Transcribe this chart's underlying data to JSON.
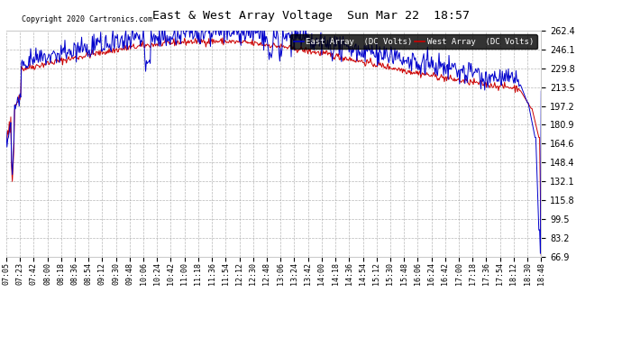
{
  "title": "East & West Array Voltage  Sun Mar 22  18:57",
  "copyright": "Copyright 2020 Cartronics.com",
  "legend_east": "East Array  (DC Volts)",
  "legend_west": "West Array  (DC Volts)",
  "east_color": "#0000cc",
  "west_color": "#cc0000",
  "background_color": "#ffffff",
  "plot_bg_color": "#ffffff",
  "grid_color": "#999999",
  "yticks": [
    66.9,
    83.2,
    99.5,
    115.8,
    132.1,
    148.4,
    164.6,
    180.9,
    197.2,
    213.5,
    229.8,
    246.1,
    262.4
  ],
  "ymin": 66.9,
  "ymax": 262.4,
  "xtick_labels": [
    "07:05",
    "07:23",
    "07:42",
    "08:00",
    "08:18",
    "08:36",
    "08:54",
    "09:12",
    "09:30",
    "09:48",
    "10:06",
    "10:24",
    "10:42",
    "11:00",
    "11:18",
    "11:36",
    "11:54",
    "12:12",
    "12:30",
    "12:48",
    "13:06",
    "13:24",
    "13:42",
    "14:00",
    "14:18",
    "14:36",
    "14:54",
    "15:12",
    "15:30",
    "15:48",
    "16:06",
    "16:24",
    "16:42",
    "17:00",
    "17:18",
    "17:36",
    "17:54",
    "18:12",
    "18:30",
    "18:48"
  ],
  "seed": 42
}
